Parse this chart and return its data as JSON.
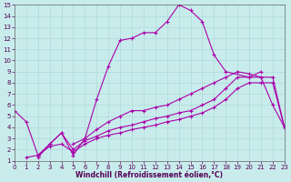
{
  "xlabel": "Windchill (Refroidissement éolien,°C)",
  "bg_color": "#c8ecec",
  "line_color": "#aa00aa",
  "xlim": [
    0,
    23
  ],
  "ylim": [
    1,
    15
  ],
  "xticks": [
    0,
    1,
    2,
    3,
    4,
    5,
    6,
    7,
    8,
    9,
    10,
    11,
    12,
    13,
    14,
    15,
    16,
    17,
    18,
    19,
    20,
    21,
    22,
    23
  ],
  "yticks": [
    1,
    2,
    3,
    4,
    5,
    6,
    7,
    8,
    9,
    10,
    11,
    12,
    13,
    14,
    15
  ],
  "curve1_x": [
    0,
    1,
    2,
    3,
    4,
    5,
    6,
    7,
    8,
    9,
    10,
    11,
    12,
    13,
    14,
    15,
    16,
    17,
    18,
    20,
    21
  ],
  "curve1_y": [
    5.5,
    4.5,
    1.5,
    2.5,
    3.5,
    1.5,
    3.0,
    6.5,
    9.5,
    11.8,
    12.0,
    12.5,
    12.5,
    13.5,
    15.0,
    14.5,
    13.5,
    10.5,
    9.0,
    8.5,
    9.0
  ],
  "curve2_x": [
    5,
    6,
    7,
    8,
    9,
    10,
    11,
    12,
    13,
    14,
    15,
    16,
    17,
    18,
    19,
    20,
    21,
    22,
    23
  ],
  "curve2_y": [
    2.5,
    3.0,
    3.8,
    4.5,
    5.0,
    5.5,
    5.5,
    5.8,
    6.0,
    6.5,
    7.0,
    7.5,
    8.0,
    8.5,
    9.0,
    8.8,
    8.5,
    6.0,
    4.0
  ],
  "curve3_x": [
    2,
    3,
    4,
    5,
    6,
    7,
    8,
    9,
    10,
    11,
    12,
    13,
    14,
    15,
    16,
    17,
    18,
    19,
    20,
    21,
    22,
    23
  ],
  "curve3_y": [
    1.3,
    2.5,
    3.5,
    2.0,
    2.8,
    3.2,
    3.7,
    4.0,
    4.2,
    4.5,
    4.8,
    5.0,
    5.3,
    5.5,
    6.0,
    6.5,
    7.5,
    8.5,
    8.5,
    8.5,
    8.5,
    4.0
  ],
  "curve4_x": [
    1,
    2,
    3,
    4,
    5,
    6,
    7,
    8,
    9,
    10,
    11,
    12,
    13,
    14,
    15,
    16,
    17,
    18,
    19,
    20,
    21,
    22,
    23
  ],
  "curve4_y": [
    1.3,
    1.5,
    2.3,
    2.5,
    1.8,
    2.5,
    3.0,
    3.3,
    3.5,
    3.8,
    4.0,
    4.2,
    4.5,
    4.7,
    5.0,
    5.3,
    5.8,
    6.5,
    7.5,
    8.0,
    8.0,
    8.0,
    4.0
  ]
}
